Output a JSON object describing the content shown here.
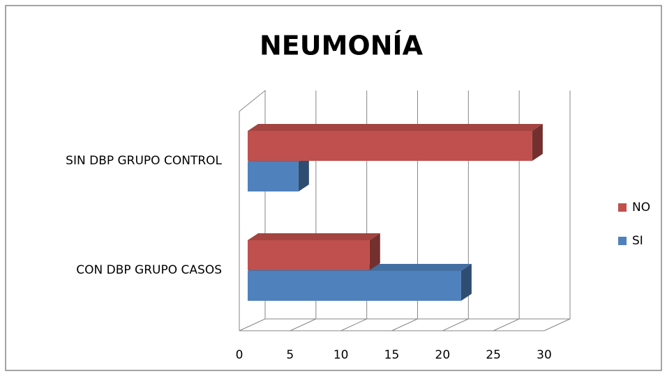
{
  "chart_data": {
    "type": "bar3d_horizontal",
    "title": "NEUMONÍA",
    "categories": [
      "CON DBP GRUPO CASOS",
      "SIN DBP GRUPO CONTROL"
    ],
    "series": [
      {
        "name": "SI",
        "color": "#4f81bd",
        "values": [
          21,
          5
        ]
      },
      {
        "name": "NO",
        "color": "#c0504d",
        "values": [
          12,
          28
        ]
      }
    ],
    "xlim": [
      0,
      30
    ],
    "xticks": [
      0,
      5,
      10,
      15,
      20,
      25,
      30
    ],
    "grid": true,
    "legend": "right"
  }
}
